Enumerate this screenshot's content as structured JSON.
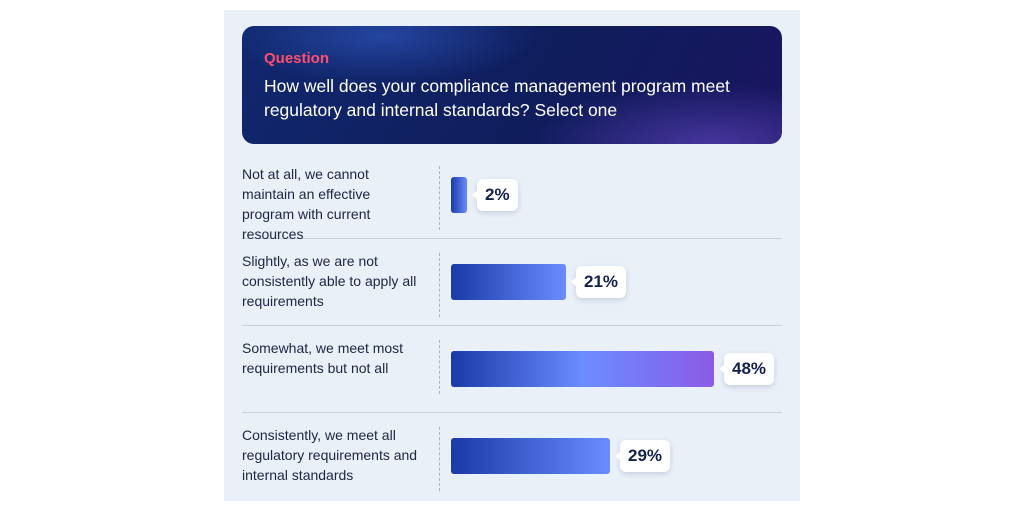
{
  "question": {
    "label": "Question",
    "text": "How well does your compliance management program meet regulatory and internal standards? Select one"
  },
  "colors": {
    "bar_start": "#1a3aa8",
    "bar_mid": "#6b8cff",
    "bar_end": "#8a5ce6",
    "question_label": "#ff4d6e"
  },
  "chart_data": {
    "type": "bar",
    "orientation": "horizontal",
    "categories": [
      "Not at all, we cannot maintain an effective program with current resources",
      "Slightly, as we are not consistently able to apply all requirements",
      "Somewhat, we meet most requirements but not all",
      "Consistently, we meet all regulatory requirements and internal standards"
    ],
    "values": [
      2,
      21,
      48,
      29
    ],
    "value_labels": [
      "2%",
      "21%",
      "48%",
      "29%"
    ],
    "xlim": [
      0,
      48
    ],
    "grid": false
  }
}
